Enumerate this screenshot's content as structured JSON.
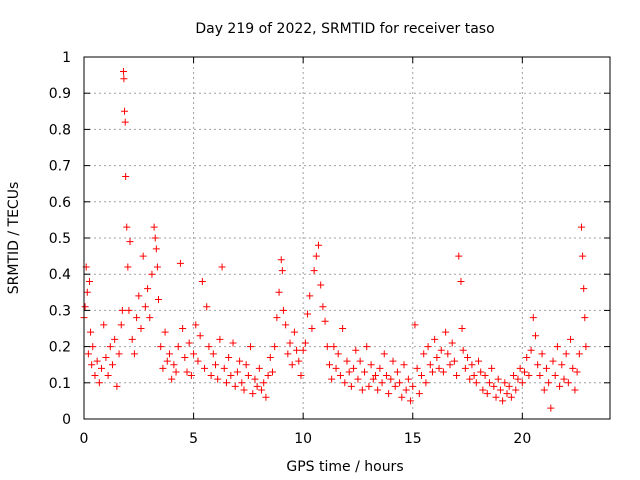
{
  "chart_data": {
    "type": "scatter",
    "title": "Day 219 of 2022, SRMTID for receiver taso",
    "xlabel": "GPS time / hours",
    "ylabel": "SRMTID / TECUs",
    "xlim": [
      0,
      24
    ],
    "ylim": [
      0,
      1
    ],
    "xticks": [
      "0",
      "5",
      "10",
      "15",
      "20"
    ],
    "yticks": [
      "0",
      "0.1",
      "0.2",
      "0.3",
      "0.4",
      "0.5",
      "0.6",
      "0.7",
      "0.8",
      "0.9",
      "1"
    ],
    "grid": true,
    "marker": "plus",
    "color": "#ff0000",
    "series": [
      {
        "name": "SRMTID",
        "x": [
          0.0,
          0.05,
          0.1,
          0.15,
          0.2,
          0.25,
          0.3,
          0.35,
          0.4,
          0.5,
          0.6,
          0.7,
          0.8,
          0.9,
          1.0,
          1.1,
          1.2,
          1.3,
          1.4,
          1.5,
          1.6,
          1.7,
          1.75,
          1.8,
          1.82,
          1.85,
          1.88,
          1.9,
          1.95,
          2.0,
          2.05,
          2.1,
          2.2,
          2.3,
          2.4,
          2.5,
          2.6,
          2.7,
          2.8,
          2.9,
          3.0,
          3.1,
          3.2,
          3.25,
          3.3,
          3.35,
          3.4,
          3.5,
          3.6,
          3.7,
          3.8,
          3.9,
          4.0,
          4.1,
          4.2,
          4.3,
          4.4,
          4.5,
          4.6,
          4.7,
          4.8,
          4.9,
          5.0,
          5.1,
          5.2,
          5.3,
          5.4,
          5.5,
          5.6,
          5.7,
          5.8,
          5.9,
          6.0,
          6.1,
          6.2,
          6.3,
          6.4,
          6.5,
          6.6,
          6.7,
          6.8,
          6.9,
          7.0,
          7.1,
          7.2,
          7.3,
          7.4,
          7.5,
          7.6,
          7.7,
          7.8,
          7.9,
          8.0,
          8.1,
          8.2,
          8.3,
          8.4,
          8.5,
          8.6,
          8.7,
          8.8,
          8.9,
          9.0,
          9.05,
          9.1,
          9.2,
          9.3,
          9.4,
          9.5,
          9.6,
          9.7,
          9.8,
          9.9,
          10.0,
          10.1,
          10.2,
          10.3,
          10.4,
          10.5,
          10.6,
          10.7,
          10.8,
          10.9,
          11.0,
          11.1,
          11.2,
          11.3,
          11.4,
          11.5,
          11.6,
          11.7,
          11.8,
          11.9,
          12.0,
          12.1,
          12.2,
          12.3,
          12.4,
          12.5,
          12.6,
          12.7,
          12.8,
          12.9,
          13.0,
          13.1,
          13.2,
          13.3,
          13.4,
          13.5,
          13.6,
          13.7,
          13.8,
          13.9,
          14.0,
          14.1,
          14.2,
          14.3,
          14.4,
          14.5,
          14.6,
          14.7,
          14.8,
          14.9,
          15.0,
          15.1,
          15.2,
          15.3,
          15.4,
          15.5,
          15.6,
          15.7,
          15.8,
          15.9,
          16.0,
          16.1,
          16.2,
          16.3,
          16.4,
          16.5,
          16.6,
          16.7,
          16.8,
          16.9,
          17.0,
          17.1,
          17.2,
          17.25,
          17.3,
          17.4,
          17.5,
          17.6,
          17.7,
          17.8,
          17.9,
          18.0,
          18.1,
          18.2,
          18.3,
          18.4,
          18.5,
          18.6,
          18.7,
          18.8,
          18.9,
          19.0,
          19.1,
          19.2,
          19.3,
          19.4,
          19.5,
          19.6,
          19.7,
          19.8,
          19.9,
          20.0,
          20.1,
          20.2,
          20.3,
          20.4,
          20.5,
          20.6,
          20.7,
          20.8,
          20.9,
          21.0,
          21.1,
          21.2,
          21.3,
          21.4,
          21.5,
          21.6,
          21.7,
          21.8,
          21.9,
          22.0,
          22.1,
          22.2,
          22.3,
          22.4,
          22.5,
          22.6,
          22.7,
          22.75,
          22.8,
          22.85,
          22.9
        ],
        "y": [
          0.28,
          0.31,
          0.42,
          0.35,
          0.18,
          0.38,
          0.24,
          0.15,
          0.2,
          0.12,
          0.16,
          0.1,
          0.14,
          0.26,
          0.17,
          0.12,
          0.2,
          0.15,
          0.22,
          0.09,
          0.18,
          0.26,
          0.3,
          0.96,
          0.94,
          0.85,
          0.82,
          0.67,
          0.53,
          0.42,
          0.3,
          0.49,
          0.22,
          0.18,
          0.28,
          0.34,
          0.25,
          0.45,
          0.31,
          0.36,
          0.28,
          0.4,
          0.53,
          0.5,
          0.47,
          0.42,
          0.33,
          0.2,
          0.14,
          0.24,
          0.16,
          0.18,
          0.11,
          0.15,
          0.13,
          0.2,
          0.43,
          0.25,
          0.17,
          0.13,
          0.21,
          0.12,
          0.18,
          0.26,
          0.16,
          0.23,
          0.38,
          0.14,
          0.31,
          0.2,
          0.12,
          0.18,
          0.15,
          0.11,
          0.22,
          0.42,
          0.14,
          0.1,
          0.17,
          0.12,
          0.21,
          0.09,
          0.13,
          0.16,
          0.1,
          0.08,
          0.15,
          0.12,
          0.2,
          0.07,
          0.11,
          0.09,
          0.14,
          0.08,
          0.1,
          0.06,
          0.12,
          0.17,
          0.13,
          0.2,
          0.28,
          0.35,
          0.44,
          0.41,
          0.3,
          0.26,
          0.18,
          0.21,
          0.15,
          0.24,
          0.19,
          0.16,
          0.12,
          0.19,
          0.21,
          0.29,
          0.34,
          0.25,
          0.41,
          0.45,
          0.48,
          0.37,
          0.31,
          0.27,
          0.2,
          0.15,
          0.11,
          0.2,
          0.14,
          0.18,
          0.12,
          0.25,
          0.1,
          0.16,
          0.13,
          0.09,
          0.14,
          0.19,
          0.11,
          0.16,
          0.08,
          0.13,
          0.2,
          0.09,
          0.15,
          0.11,
          0.12,
          0.08,
          0.14,
          0.1,
          0.18,
          0.12,
          0.07,
          0.11,
          0.16,
          0.09,
          0.13,
          0.1,
          0.06,
          0.15,
          0.08,
          0.11,
          0.05,
          0.09,
          0.26,
          0.14,
          0.07,
          0.12,
          0.18,
          0.1,
          0.2,
          0.15,
          0.13,
          0.22,
          0.17,
          0.14,
          0.19,
          0.13,
          0.24,
          0.18,
          0.15,
          0.21,
          0.16,
          0.12,
          0.45,
          0.38,
          0.25,
          0.19,
          0.14,
          0.17,
          0.11,
          0.15,
          0.12,
          0.1,
          0.16,
          0.13,
          0.08,
          0.12,
          0.07,
          0.1,
          0.14,
          0.09,
          0.06,
          0.11,
          0.08,
          0.05,
          0.1,
          0.07,
          0.09,
          0.06,
          0.12,
          0.08,
          0.11,
          0.14,
          0.1,
          0.13,
          0.17,
          0.12,
          0.19,
          0.28,
          0.23,
          0.15,
          0.12,
          0.18,
          0.08,
          0.14,
          0.1,
          0.03,
          0.16,
          0.12,
          0.2,
          0.09,
          0.15,
          0.11,
          0.18,
          0.1,
          0.22,
          0.14,
          0.08,
          0.13,
          0.18,
          0.53,
          0.45,
          0.36,
          0.28,
          0.2
        ]
      }
    ]
  }
}
